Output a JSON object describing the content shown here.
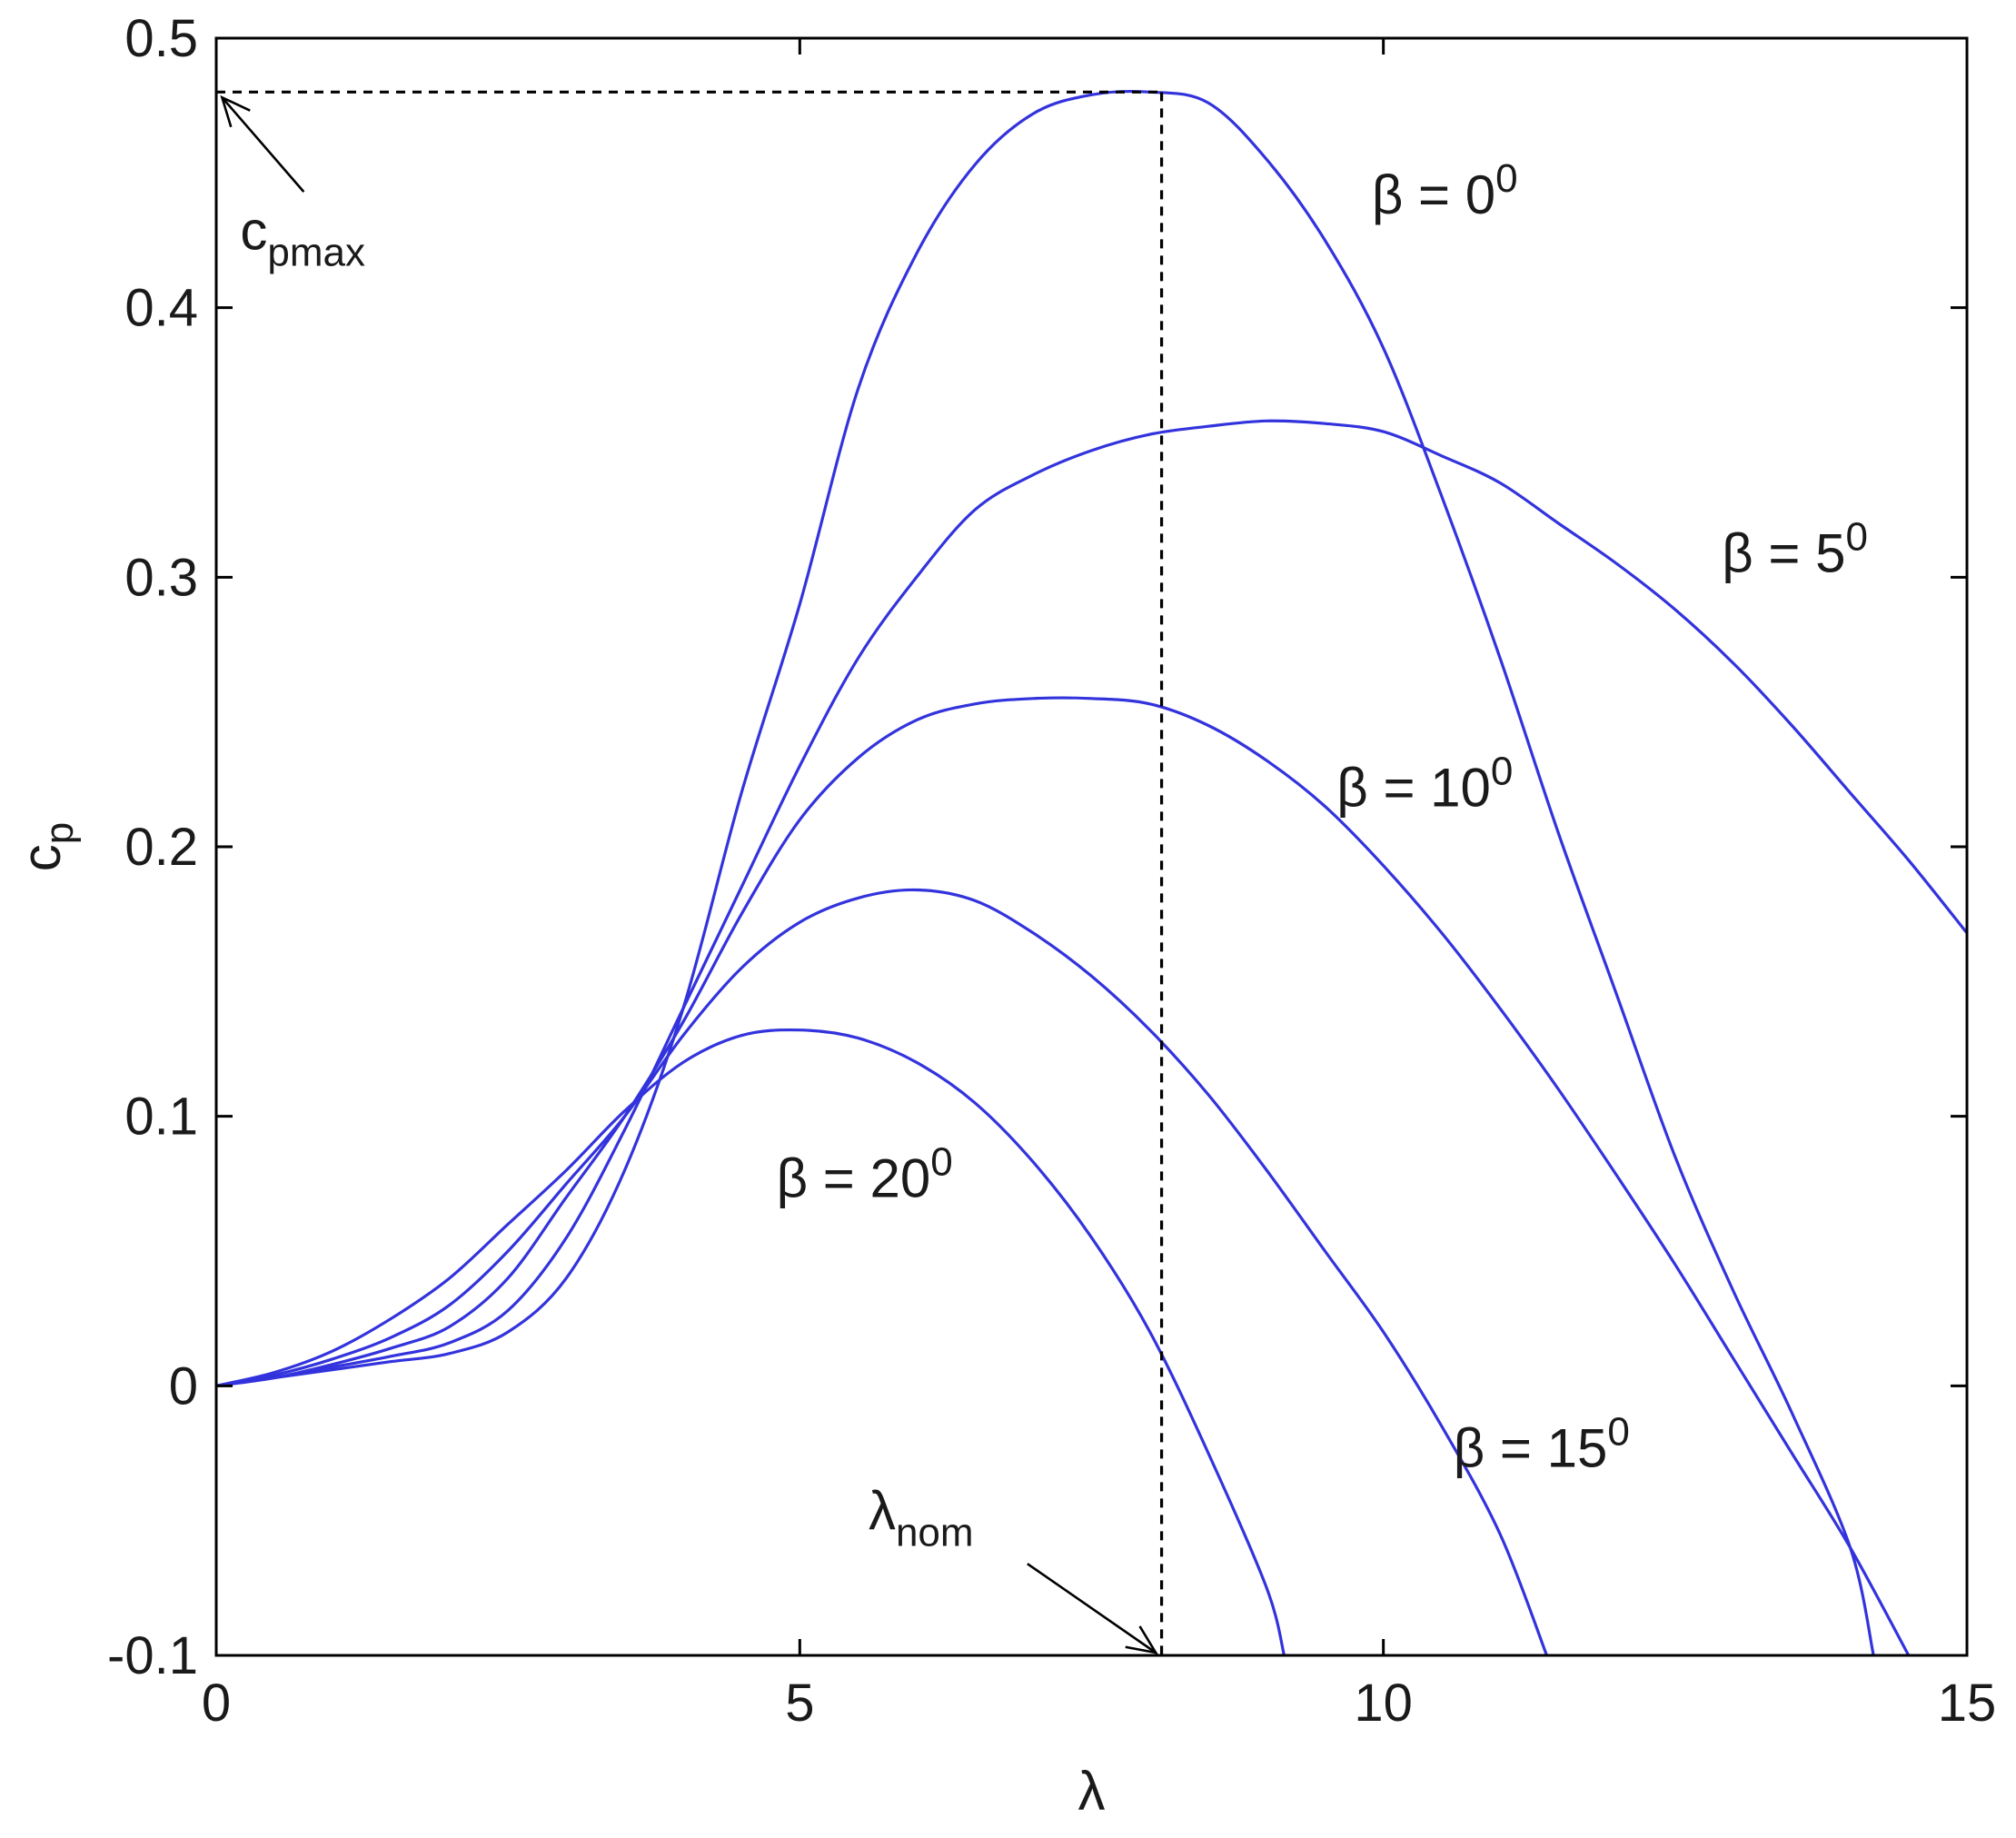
{
  "chart_data": {
    "type": "line",
    "xlabel": "λ",
    "ylabel": {
      "main": "c",
      "sub": "p"
    },
    "xlim": [
      0,
      15
    ],
    "ylim": [
      -0.1,
      0.5
    ],
    "x_ticks": [
      0,
      5,
      10,
      15
    ],
    "x_tick_labels": [
      "0",
      "5",
      "10",
      "15"
    ],
    "y_ticks": [
      -0.1,
      0,
      0.1,
      0.2,
      0.3,
      0.4,
      0.5
    ],
    "y_tick_labels": [
      "-0.1",
      "0",
      "0.1",
      "0.2",
      "0.3",
      "0.4",
      "0.5"
    ],
    "grid": false,
    "line_color": "#3333dd",
    "series": [
      {
        "pitch": "0",
        "points": [
          [
            0,
            0
          ],
          [
            0.5,
            0.003
          ],
          [
            1,
            0.006
          ],
          [
            1.5,
            0.009
          ],
          [
            2,
            0.012
          ],
          [
            2.5,
            0.02
          ],
          [
            3,
            0.04
          ],
          [
            3.5,
            0.08
          ],
          [
            4,
            0.14
          ],
          [
            4.5,
            0.22
          ],
          [
            5,
            0.29
          ],
          [
            5.5,
            0.37
          ],
          [
            6,
            0.42
          ],
          [
            6.5,
            0.453
          ],
          [
            7,
            0.472
          ],
          [
            7.5,
            0.479
          ],
          [
            8,
            0.48
          ],
          [
            8.5,
            0.476
          ],
          [
            9,
            0.455
          ],
          [
            9.5,
            0.425
          ],
          [
            10,
            0.385
          ],
          [
            10.5,
            0.33
          ],
          [
            11,
            0.27
          ],
          [
            11.5,
            0.205
          ],
          [
            12,
            0.145
          ],
          [
            12.5,
            0.085
          ],
          [
            13,
            0.035
          ],
          [
            13.5,
            -0.01
          ],
          [
            14,
            -0.06
          ],
          [
            14.2,
            -0.1
          ]
        ]
      },
      {
        "pitch": "5",
        "points": [
          [
            0,
            0
          ],
          [
            0.5,
            0.003
          ],
          [
            1,
            0.007
          ],
          [
            1.5,
            0.011
          ],
          [
            2,
            0.016
          ],
          [
            2.5,
            0.028
          ],
          [
            3,
            0.055
          ],
          [
            3.5,
            0.095
          ],
          [
            4,
            0.14
          ],
          [
            4.5,
            0.185
          ],
          [
            5,
            0.23
          ],
          [
            5.5,
            0.27
          ],
          [
            6,
            0.3
          ],
          [
            6.5,
            0.325
          ],
          [
            7,
            0.338
          ],
          [
            7.5,
            0.347
          ],
          [
            8,
            0.353
          ],
          [
            8.5,
            0.356
          ],
          [
            9,
            0.358
          ],
          [
            9.5,
            0.357
          ],
          [
            10,
            0.354
          ],
          [
            10.5,
            0.345
          ],
          [
            11,
            0.335
          ],
          [
            11.5,
            0.32
          ],
          [
            12,
            0.305
          ],
          [
            12.5,
            0.288
          ],
          [
            13,
            0.268
          ],
          [
            13.5,
            0.245
          ],
          [
            14,
            0.22
          ],
          [
            14.5,
            0.195
          ],
          [
            15,
            0.168
          ]
        ]
      },
      {
        "pitch": "10",
        "points": [
          [
            0,
            0
          ],
          [
            0.5,
            0.003
          ],
          [
            1,
            0.008
          ],
          [
            1.5,
            0.014
          ],
          [
            2,
            0.022
          ],
          [
            2.5,
            0.04
          ],
          [
            3,
            0.07
          ],
          [
            3.5,
            0.1
          ],
          [
            4,
            0.135
          ],
          [
            4.5,
            0.175
          ],
          [
            5,
            0.21
          ],
          [
            5.5,
            0.233
          ],
          [
            6,
            0.247
          ],
          [
            6.5,
            0.253
          ],
          [
            7,
            0.255
          ],
          [
            7.5,
            0.255
          ],
          [
            8,
            0.253
          ],
          [
            8.5,
            0.245
          ],
          [
            9,
            0.232
          ],
          [
            9.5,
            0.215
          ],
          [
            10,
            0.193
          ],
          [
            10.5,
            0.168
          ],
          [
            11,
            0.14
          ],
          [
            11.5,
            0.11
          ],
          [
            12,
            0.078
          ],
          [
            12.5,
            0.045
          ],
          [
            13,
            0.01
          ],
          [
            13.5,
            -0.025
          ],
          [
            14,
            -0.06
          ],
          [
            14.5,
            -0.1
          ]
        ]
      },
      {
        "pitch": "15",
        "points": [
          [
            0,
            0
          ],
          [
            0.5,
            0.004
          ],
          [
            1,
            0.01
          ],
          [
            1.5,
            0.018
          ],
          [
            2,
            0.03
          ],
          [
            2.5,
            0.05
          ],
          [
            3,
            0.075
          ],
          [
            3.5,
            0.1
          ],
          [
            4,
            0.13
          ],
          [
            4.5,
            0.155
          ],
          [
            5,
            0.172
          ],
          [
            5.5,
            0.181
          ],
          [
            6,
            0.184
          ],
          [
            6.5,
            0.18
          ],
          [
            7,
            0.168
          ],
          [
            7.5,
            0.152
          ],
          [
            8,
            0.132
          ],
          [
            8.5,
            0.108
          ],
          [
            9,
            0.08
          ],
          [
            9.5,
            0.05
          ],
          [
            10,
            0.02
          ],
          [
            10.5,
            -0.015
          ],
          [
            11,
            -0.055
          ],
          [
            11.4,
            -0.1
          ]
        ]
      },
      {
        "pitch": "20",
        "points": [
          [
            0,
            0
          ],
          [
            0.5,
            0.005
          ],
          [
            1,
            0.013
          ],
          [
            1.5,
            0.025
          ],
          [
            2,
            0.04
          ],
          [
            2.5,
            0.06
          ],
          [
            3,
            0.08
          ],
          [
            3.5,
            0.102
          ],
          [
            4,
            0.12
          ],
          [
            4.5,
            0.13
          ],
          [
            5,
            0.132
          ],
          [
            5.5,
            0.129
          ],
          [
            6,
            0.12
          ],
          [
            6.5,
            0.105
          ],
          [
            7,
            0.083
          ],
          [
            7.5,
            0.055
          ],
          [
            8,
            0.02
          ],
          [
            8.5,
            -0.025
          ],
          [
            9,
            -0.075
          ],
          [
            9.15,
            -0.1
          ]
        ]
      }
    ],
    "series_labels": [
      {
        "prefix": "β = ",
        "value": "0",
        "sup": "0",
        "at": [
          9.9,
          0.435
        ]
      },
      {
        "prefix": "β = ",
        "value": "5",
        "sup": "0",
        "at": [
          12.9,
          0.302
        ]
      },
      {
        "prefix": "β = ",
        "value": "10",
        "sup": "0",
        "at": [
          9.6,
          0.215
        ]
      },
      {
        "prefix": "β = ",
        "value": "15",
        "sup": "0",
        "at": [
          10.6,
          -0.03
        ]
      },
      {
        "prefix": "β = ",
        "value": "20",
        "sup": "0",
        "at": [
          4.8,
          0.07
        ]
      }
    ],
    "reference": {
      "cp_max": 0.48,
      "lambda_nom": 8.1
    },
    "annotations": {
      "cpmax": {
        "main": "c",
        "sub": "pmax",
        "at": [
          0.75,
          0.425
        ],
        "arrow_from": [
          0.75,
          0.443
        ],
        "arrow_to": [
          0.05,
          0.478
        ]
      },
      "lambda_nom": {
        "main": "λ",
        "sub": "nom",
        "at": [
          5.9,
          -0.05
        ],
        "arrow_from": [
          6.95,
          -0.066
        ],
        "arrow_to": [
          8.05,
          -0.099
        ]
      }
    }
  }
}
